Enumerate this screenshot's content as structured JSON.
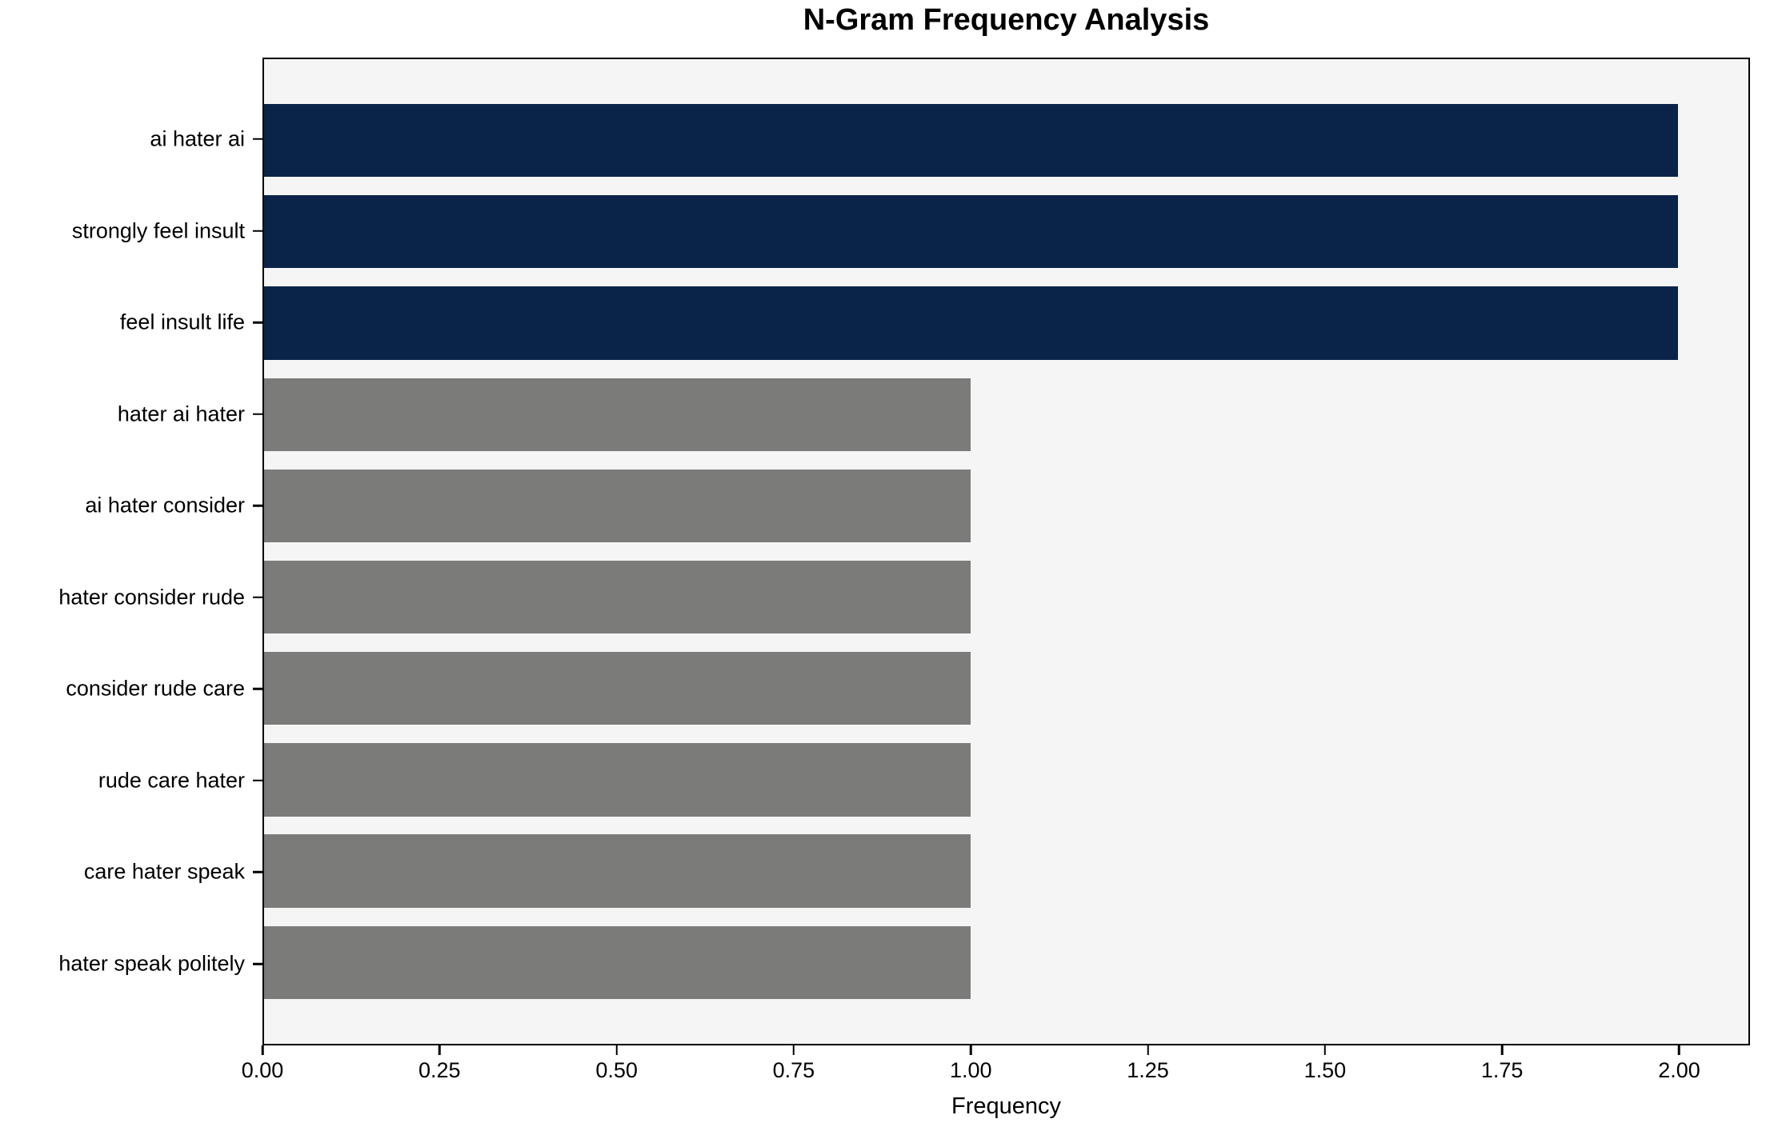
{
  "chart_data": {
    "type": "bar",
    "orientation": "horizontal",
    "title": "N-Gram Frequency Analysis",
    "xlabel": "Frequency",
    "ylabel": "",
    "categories": [
      "ai hater ai",
      "strongly feel insult",
      "feel insult life",
      "hater ai hater",
      "ai hater consider",
      "hater consider rude",
      "consider rude care",
      "rude care hater",
      "care hater speak",
      "hater speak politely"
    ],
    "values": [
      2,
      2,
      2,
      1,
      1,
      1,
      1,
      1,
      1,
      1
    ],
    "bar_colors": [
      "#0a2348",
      "#0a2348",
      "#0a2348",
      "#7b7b79",
      "#7b7b79",
      "#7b7b79",
      "#7b7b79",
      "#7b7b79",
      "#7b7b79",
      "#7b7b79"
    ],
    "xlim": [
      0,
      2.1
    ],
    "xtick_values": [
      0,
      0.25,
      0.5,
      0.75,
      1.0,
      1.25,
      1.5,
      1.75,
      2.0
    ],
    "xtick_labels": [
      "0.00",
      "0.25",
      "0.50",
      "0.75",
      "1.00",
      "1.25",
      "1.50",
      "1.75",
      "2.00"
    ],
    "grid": false,
    "legend_position": "none",
    "plot_background": "#f5f5f5",
    "figure_background": "#ffffff",
    "accent_colors": {
      "high_frequency_bar": "#0a2348",
      "low_frequency_bar": "#7b7b79",
      "axis": "#000000"
    }
  }
}
